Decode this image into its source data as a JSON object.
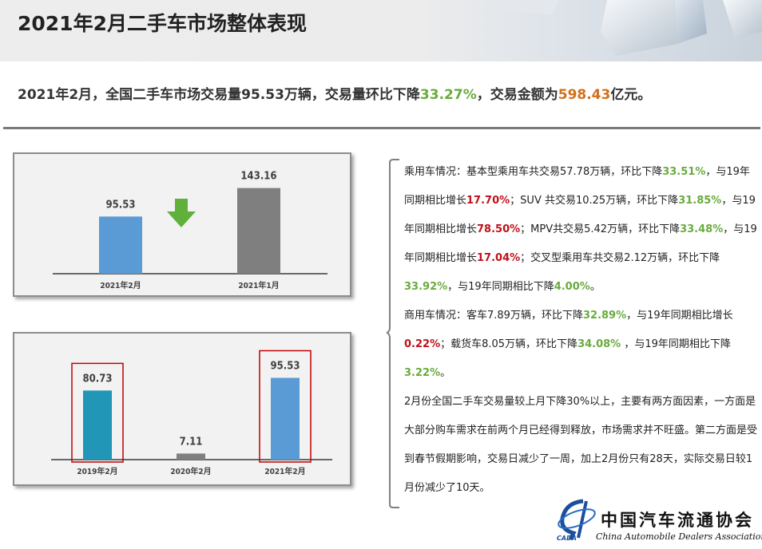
{
  "header": {
    "title": "2021年2月二手车市场整体表现"
  },
  "summary": {
    "prefix": "2021年2月，全国二手车市场交易量95.53万辆，交易量环比下降",
    "mom_change": "33.27%",
    "middle": "，交易金额为",
    "amount": "598.43",
    "suffix": "亿元。"
  },
  "chart_data": [
    {
      "type": "bar",
      "categories": [
        "2021年2月",
        "2021年1月"
      ],
      "values": [
        95.53,
        143.16
      ],
      "value_labels": [
        "95.53",
        "143.16"
      ],
      "colors": [
        "#5b9bd5",
        "#7f7f7f"
      ],
      "ylim": [
        0,
        160
      ],
      "grid": false,
      "annotation": "down-arrow-icon"
    },
    {
      "type": "bar",
      "categories": [
        "2019年2月",
        "2020年2月",
        "2021年2月"
      ],
      "values": [
        80.73,
        7.11,
        95.53
      ],
      "value_labels": [
        "80.73",
        "7.11",
        "95.53"
      ],
      "colors": [
        "#2196b6",
        "#7f7f7f",
        "#5b9bd5"
      ],
      "highlighted": [
        true,
        false,
        true
      ],
      "ylim": [
        0,
        110
      ],
      "grid": false
    }
  ],
  "text_panel": {
    "p1": [
      {
        "t": "乘用车情况：基本型乘用车共交易57.78万辆，环比下降",
        "c": ""
      },
      {
        "t": "33.51%",
        "c": "g"
      },
      {
        "t": "，与19年同期相比增长",
        "c": ""
      },
      {
        "t": "17.70%",
        "c": "r"
      },
      {
        "t": "；SUV 共交易10.25万辆，环比下降",
        "c": ""
      },
      {
        "t": "31.85%",
        "c": "g"
      },
      {
        "t": "，与19年同期相比增长",
        "c": ""
      },
      {
        "t": "78.50%",
        "c": "r"
      },
      {
        "t": "；MPV共交易5.42万辆，环比下降",
        "c": ""
      },
      {
        "t": "33.48%",
        "c": "g"
      },
      {
        "t": "，与19年同期相比增长",
        "c": ""
      },
      {
        "t": "17.04%",
        "c": "r"
      },
      {
        "t": "；交叉型乘用车共交易2.12万辆，环比下降",
        "c": ""
      },
      {
        "t": "33.92%",
        "c": "g"
      },
      {
        "t": "，与19年同期相比下降",
        "c": ""
      },
      {
        "t": "4.00%",
        "c": "g"
      },
      {
        "t": "。",
        "c": ""
      }
    ],
    "p2": [
      {
        "t": "商用车情况：客车7.89万辆，环比下降",
        "c": ""
      },
      {
        "t": "32.89%",
        "c": "g"
      },
      {
        "t": "，与19年同期相比增长",
        "c": ""
      },
      {
        "t": "0.22%",
        "c": "r"
      },
      {
        "t": "；载货车8.05万辆，环比下降",
        "c": ""
      },
      {
        "t": "34.08%",
        "c": "g"
      },
      {
        "t": " ，与19年同期相比下降",
        "c": ""
      },
      {
        "t": "3.22%",
        "c": "g"
      },
      {
        "t": "。",
        "c": ""
      }
    ],
    "p3": [
      {
        "t": "2月份全国二手车交易量较上月下降30%以上，主要有两方面因素，一方面是大部分购车需求在前两个月已经得到释放，市场需求并不旺盛。第二方面是受到春节假期影响，交易日减少了一周，加上2月份只有28天，实际交易日较1月份减少了10天。",
        "c": ""
      }
    ]
  },
  "logo": {
    "cn": "中国汽车流通协会",
    "en": "China Automobile Dealers Association",
    "abbr": "CADA"
  },
  "colors": {
    "decrease": "#6aab3d",
    "increase": "#c0111b",
    "amount": "#d0711c"
  }
}
